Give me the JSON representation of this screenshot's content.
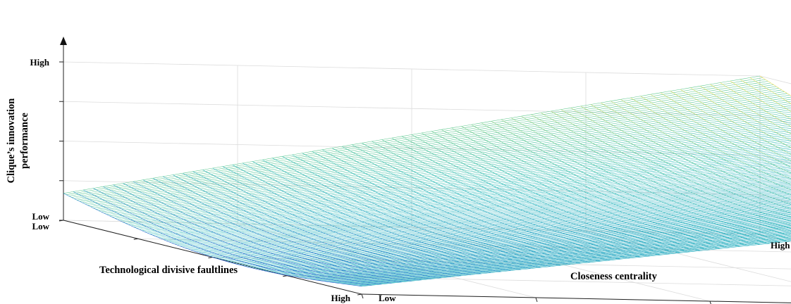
{
  "chart_data": {
    "type": "surface",
    "title": "",
    "x_axis": {
      "label": "Closeness centrality",
      "tick_labels": [
        "Low",
        "High"
      ],
      "range": [
        0,
        1
      ]
    },
    "y_axis": {
      "label": "Technological divisive faultlines",
      "tick_labels": [
        "Low",
        "High"
      ],
      "range": [
        0,
        1
      ]
    },
    "z_axis": {
      "label": "Clique’s innovation performance",
      "label_lines": [
        "Clique’s innovation",
        "performance"
      ],
      "tick_labels": [
        "Low",
        "High"
      ],
      "range": [
        0,
        1
      ]
    },
    "grid": true,
    "colormap": [
      "#1f4fd1",
      "#1f95c8",
      "#23b8b8",
      "#60c98a",
      "#b8d058",
      "#f2e046"
    ],
    "surface_corners": [
      {
        "x": 0,
        "y": 0,
        "z": 0.17
      },
      {
        "x": 0,
        "y": 1,
        "z": 0.05
      },
      {
        "x": 1,
        "y": 0,
        "z": 1.0
      },
      {
        "x": 1,
        "y": 1,
        "z": 0.6
      }
    ],
    "surface_profile_note": "U-shaped along technological divisive faultlines, rising with closeness centrality"
  }
}
